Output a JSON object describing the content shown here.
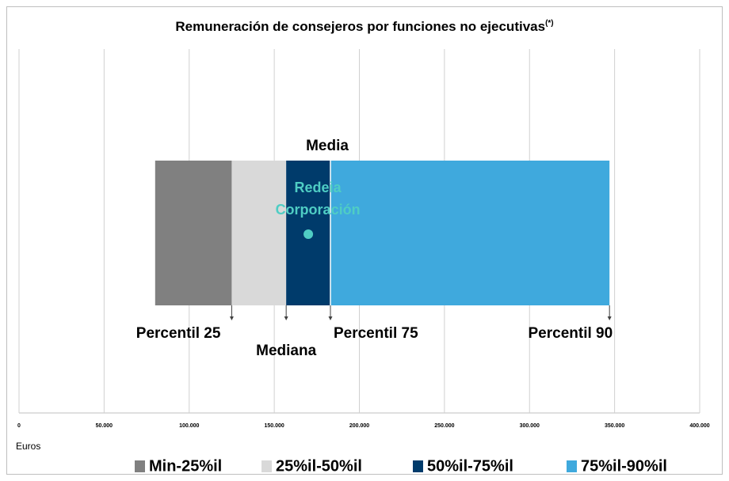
{
  "chart_data": {
    "type": "floating_stacked_barh",
    "title": "Remuneración de consejeros por funciones no ejecutivas",
    "title_note": "(*)",
    "x_label": "Euros",
    "base": 80000,
    "series": [
      {
        "name": "Min-25%il",
        "color": "#808080",
        "values": [
          45000
        ]
      },
      {
        "name": "25%il-50%il",
        "color": "#d9d9d9",
        "values": [
          32000
        ]
      },
      {
        "name": "50%il-75%il",
        "color": "#003b6b",
        "values": [
          26000
        ]
      },
      {
        "name": "75%il-90%il",
        "color": "#3fa9dd",
        "values": [
          164000
        ]
      }
    ],
    "xlim": [
      0,
      400000
    ],
    "xticks": [
      0,
      {
        "value": 50000,
        "label": "50.000"
      },
      {
        "value": 100000,
        "label": "100.000"
      },
      {
        "value": 150000,
        "label": "150.000"
      },
      {
        "value": 200000,
        "label": "200.000"
      },
      {
        "value": 250000,
        "label": "250.000"
      },
      {
        "value": 300000,
        "label": "300.000"
      },
      {
        "value": 350000,
        "label": "350.000"
      },
      {
        "value": 400000,
        "label": "400.000"
      }
    ],
    "grid": true,
    "annotations": [
      {
        "text": "Percentil 25",
        "x": 125000
      },
      {
        "text": "Mediana",
        "x": 157000
      },
      {
        "text": "Percentil 75",
        "x": 183000
      },
      {
        "text": "Percentil 90",
        "x": 347000
      },
      {
        "text": "Media",
        "x": 183000
      }
    ],
    "point": {
      "label": [
        "Redeia",
        "Corporación"
      ],
      "x": 170000,
      "color": "#4fcdc4"
    }
  }
}
